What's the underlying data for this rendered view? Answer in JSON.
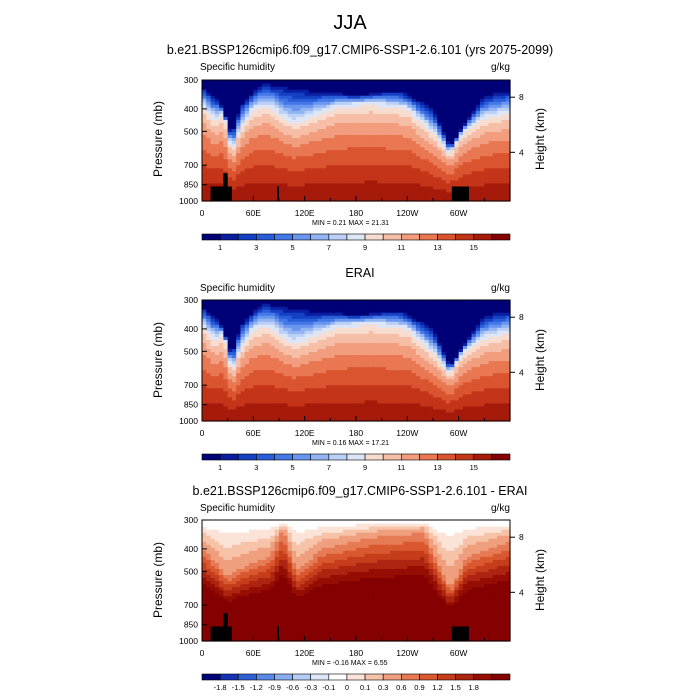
{
  "figure": {
    "title": "JJA"
  },
  "colors": {
    "positive_palette": [
      "#000077",
      "#0b1ea0",
      "#1540c4",
      "#2a5ed8",
      "#4478e8",
      "#6a96ef",
      "#93b4f3",
      "#bad0f7",
      "#dde6f6",
      "#f7ddd0",
      "#f6bea6",
      "#f19d7e",
      "#e87752",
      "#da5430",
      "#c43418",
      "#a51a0a",
      "#850000"
    ],
    "diff_palette": [
      "#000077",
      "#1532b6",
      "#3160d6",
      "#5a8ae8",
      "#88aef0",
      "#b6cdf6",
      "#dce6f7",
      "#ffffff",
      "#fbe3d7",
      "#f6c2a8",
      "#ef9f7e",
      "#e57a55",
      "#d9582f",
      "#c63d1c",
      "#ad2410",
      "#950d03",
      "#850000"
    ],
    "mask": "#000000"
  },
  "chart_data": [
    {
      "type": "heatmap",
      "title": "b.e21.BSSP126cmip6.f09_g17.CMIP6-SSP1-2.6.101 (yrs 2075-2099)",
      "left_label": "Specific humidity",
      "right_label": "g/kg",
      "ylabel": "Pressure (mb)",
      "ylabel_right": "Height (km)",
      "x_ticks": [
        "0",
        "60E",
        "120E",
        "180",
        "120W",
        "60W"
      ],
      "y_ticks": [
        "300",
        "400",
        "500",
        "700",
        "850",
        "1000"
      ],
      "y_right_ticks": [
        "8",
        "4"
      ],
      "min_max": "MIN =   0.21  MAX =  21.31",
      "colorbar_labels": [
        "1",
        "3",
        "5",
        "7",
        "9",
        "11",
        "13",
        "15"
      ],
      "ylim": [
        1000,
        300
      ]
    },
    {
      "type": "heatmap",
      "title": "ERAI",
      "left_label": "Specific humidity",
      "right_label": "g/kg",
      "ylabel": "Pressure (mb)",
      "ylabel_right": "Height (km)",
      "x_ticks": [
        "0",
        "60E",
        "120E",
        "180",
        "120W",
        "60W"
      ],
      "y_ticks": [
        "300",
        "400",
        "500",
        "700",
        "850",
        "1000"
      ],
      "y_right_ticks": [
        "8",
        "4"
      ],
      "min_max": "MIN =   0.16  MAX =  17.21",
      "colorbar_labels": [
        "1",
        "3",
        "5",
        "7",
        "9",
        "11",
        "13",
        "15"
      ],
      "ylim": [
        1000,
        300
      ]
    },
    {
      "type": "heatmap",
      "title": "b.e21.BSSP126cmip6.f09_g17.CMIP6-SSP1-2.6.101 - ERAI",
      "left_label": "Specific humidity",
      "right_label": "g/kg",
      "ylabel": "Pressure (mb)",
      "ylabel_right": "Height (km)",
      "x_ticks": [
        "0",
        "60E",
        "120E",
        "180",
        "120W",
        "60W"
      ],
      "y_ticks": [
        "300",
        "400",
        "500",
        "700",
        "850",
        "1000"
      ],
      "y_right_ticks": [
        "8",
        "4"
      ],
      "min_max": "MIN =  -0.16  MAX =   6.55",
      "colorbar_labels": [
        "-1.8",
        "-1.5",
        "-1.2",
        "-0.9",
        "-0.6",
        "-0.3",
        "-0.1",
        "0",
        "0.1",
        "0.3",
        "0.6",
        "0.9",
        "1.2",
        "1.5",
        "1.8"
      ],
      "ylim": [
        1000,
        300
      ]
    }
  ]
}
